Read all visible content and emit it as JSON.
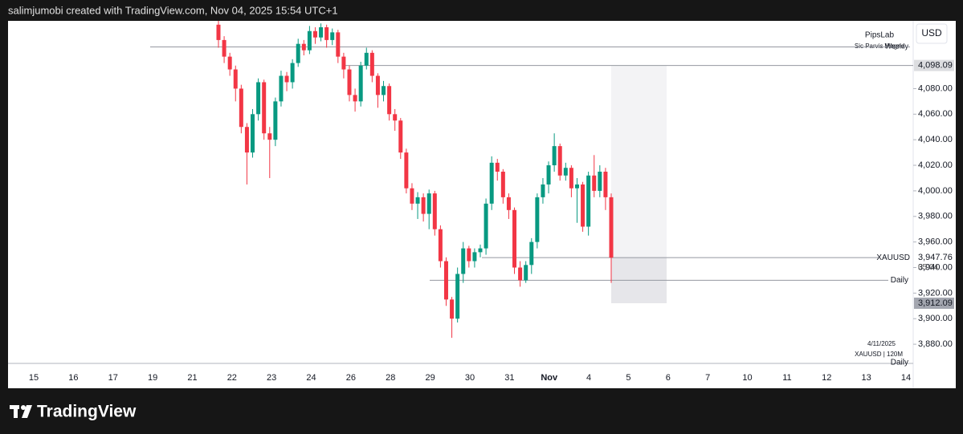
{
  "header": "salimjumobi created with TradingView.com, Nov 04, 2025 15:54 UTC+1",
  "brand": "TradingView",
  "chart_data": {
    "type": "candlestick",
    "currency": "USD",
    "watermark": {
      "title": "PipsLab",
      "subtitle": "Sic Parvis Magna",
      "overlay": "Weekly"
    },
    "footnote": {
      "date": "4/11/2025",
      "symbol": "XAUUSD | 120M",
      "timeframe": "Daily"
    },
    "up_color": "#089981",
    "down_color": "#f23645",
    "ylim": [
      3865,
      4133
    ],
    "yticks": [
      {
        "value": 3880,
        "label": "3,880.00"
      },
      {
        "value": 3900,
        "label": "3,900.00"
      },
      {
        "value": 3920,
        "label": "3,920.00"
      },
      {
        "value": 3940,
        "label": "3,940.00"
      },
      {
        "value": 3960,
        "label": "3,960.00"
      },
      {
        "value": 3980,
        "label": "3,980.00"
      },
      {
        "value": 4000,
        "label": "4,000.00"
      },
      {
        "value": 4020,
        "label": "4,020.00"
      },
      {
        "value": 4040,
        "label": "4,040.00"
      },
      {
        "value": 4060,
        "label": "4,060.00"
      },
      {
        "value": 4080,
        "label": "4,080.00"
      }
    ],
    "time_labels": [
      "15",
      "16",
      "17",
      "19",
      "21",
      "22",
      "23",
      "24",
      "26",
      "28",
      "29",
      "30",
      "31",
      "Nov",
      "4",
      "5",
      "6",
      "7",
      "10",
      "11",
      "12",
      "13",
      "14"
    ],
    "open": [
      4130,
      4118,
      4105,
      4095,
      4080,
      4050,
      4030,
      4060,
      4085,
      4045,
      4040,
      4070,
      4090,
      4085,
      4100,
      4115,
      4110,
      4125,
      4120,
      4128,
      4118,
      4124,
      4105,
      4095,
      4075,
      4070,
      4098,
      4108,
      4090,
      4075,
      4082,
      4060,
      4055,
      4030,
      4002,
      3990,
      3995,
      3982,
      3998,
      3970,
      3945,
      3915,
      3900,
      3935,
      3955,
      3945,
      3952,
      3955,
      3990,
      4022,
      4015,
      3995,
      3985,
      3940,
      3930,
      3942,
      3960,
      3995,
      4005,
      4020,
      4035,
      4012,
      4018,
      4002,
      4005,
      3972,
      4012,
      4000,
      4015,
      3995
    ],
    "high": [
      4133,
      4121,
      4108,
      4098,
      4083,
      4053,
      4064,
      4088,
      4087,
      4050,
      4073,
      4094,
      4093,
      4103,
      4119,
      4118,
      4129,
      4128,
      4131,
      4130,
      4127,
      4126,
      4108,
      4098,
      4080,
      4101,
      4112,
      4110,
      4092,
      4086,
      4084,
      4064,
      4057,
      4033,
      4006,
      3999,
      3998,
      4001,
      4000,
      3973,
      3948,
      3917,
      3940,
      3960,
      3957,
      3955,
      3958,
      3994,
      4027,
      4025,
      4017,
      3998,
      3987,
      3945,
      3945,
      3963,
      3998,
      4010,
      4023,
      4045,
      4037,
      4022,
      4020,
      4010,
      4007,
      4015,
      4028,
      4020,
      4018,
      3998
    ],
    "low": [
      4112,
      4100,
      4090,
      4070,
      4045,
      4005,
      4026,
      4055,
      4040,
      4010,
      4035,
      4066,
      4078,
      4080,
      4097,
      4106,
      4107,
      4115,
      4117,
      4112,
      4114,
      4100,
      4088,
      4070,
      4062,
      4066,
      4095,
      4085,
      4065,
      4070,
      4055,
      4047,
      4025,
      3998,
      3985,
      3978,
      3976,
      3970,
      3965,
      3940,
      3910,
      3885,
      3897,
      3928,
      3940,
      3940,
      3948,
      3950,
      3985,
      4008,
      3990,
      3978,
      3935,
      3925,
      3928,
      3935,
      3955,
      3990,
      3998,
      4015,
      4008,
      4008,
      3995,
      3975,
      3968,
      3965,
      3995,
      3995,
      3985,
      3928
    ],
    "close": [
      4118,
      4105,
      4095,
      4080,
      4050,
      4030,
      4060,
      4085,
      4045,
      4040,
      4070,
      4090,
      4085,
      4100,
      4115,
      4110,
      4125,
      4120,
      4128,
      4118,
      4124,
      4105,
      4095,
      4075,
      4070,
      4098,
      4108,
      4090,
      4075,
      4082,
      4060,
      4055,
      4030,
      4002,
      3990,
      3995,
      3982,
      3998,
      3970,
      3945,
      3915,
      3900,
      3935,
      3955,
      3945,
      3952,
      3955,
      3990,
      4022,
      4015,
      3995,
      3985,
      3940,
      3930,
      3942,
      3960,
      3995,
      4005,
      4020,
      4035,
      4012,
      4018,
      4002,
      4005,
      3972,
      4012,
      4000,
      4015,
      3995,
      3947.76
    ],
    "levels": [
      {
        "name": "Daily",
        "value": 3930
      }
    ],
    "weekly_level": 4112.6,
    "price_labels": [
      {
        "value": 4098.09,
        "label": "4,098.09"
      },
      {
        "value": 3912.09,
        "label": "3,912.09"
      }
    ],
    "last_price": {
      "symbol": "XAUUSD",
      "value": 3947.76,
      "label": "3,947.76",
      "countdown": "05:04"
    }
  }
}
